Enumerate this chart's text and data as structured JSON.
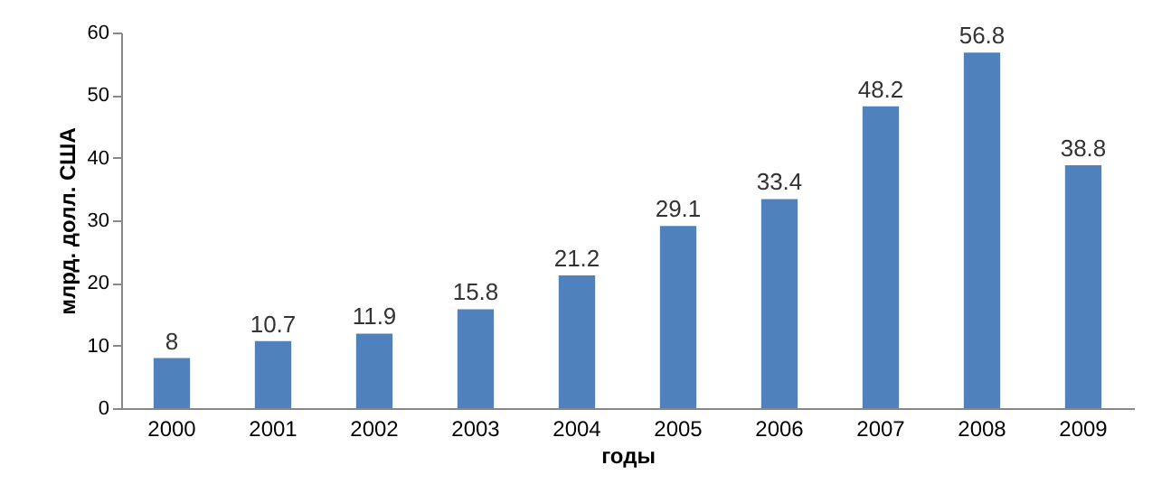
{
  "chart_data": {
    "type": "bar",
    "xlabel": "годы",
    "ylabel": "млрд. долл. США",
    "categories": [
      "2000",
      "2001",
      "2002",
      "2003",
      "2004",
      "2005",
      "2006",
      "2007",
      "2008",
      "2009"
    ],
    "values": [
      8,
      10.7,
      11.9,
      15.8,
      21.2,
      29.1,
      33.4,
      48.2,
      56.8,
      38.8
    ],
    "color": "#4f81bd",
    "ylim": [
      0,
      60
    ],
    "yticks": [
      0,
      10,
      20,
      30,
      40,
      50,
      60
    ],
    "data_labels": true
  }
}
